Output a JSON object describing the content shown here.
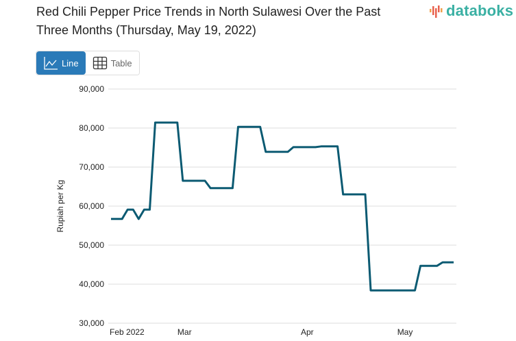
{
  "header": {
    "title": "Red Chili Pepper Price Trends in North Sulawesi Over the Past Three Months (Thursday, May 19, 2022)",
    "logo": "databoks"
  },
  "view_toggle": {
    "line_label": "Line",
    "table_label": "Table",
    "selected": "Line",
    "line_icon": "line-chart-icon",
    "table_icon": "table-grid-icon"
  },
  "colors": {
    "line": "#0b5a72",
    "accent": "#2a7ab8",
    "logo": "#3ab0a3",
    "logo_bars": "#e8604c"
  },
  "chart_data": {
    "type": "line",
    "title": "Red Chili Pepper Price Trends in North Sulawesi Over the Past Three Months (Thursday, May 19, 2022)",
    "ylabel": "Rupiah per Kg",
    "xlabel": "",
    "ylim": [
      30000,
      90000
    ],
    "yticks": [
      30000,
      40000,
      50000,
      60000,
      70000,
      80000,
      90000
    ],
    "ytick_labels": [
      "30,000",
      "40,000",
      "50,000",
      "60,000",
      "70,000",
      "80,000",
      "90,000"
    ],
    "xticks": [
      {
        "label": "Feb 2022",
        "at": 2.9
      },
      {
        "label": "Mar",
        "at": 13.3
      },
      {
        "label": "Apr",
        "at": 35.5
      },
      {
        "label": "May",
        "at": 53.2
      }
    ],
    "grid": true,
    "legend": "none",
    "values": [
      56700,
      56700,
      56700,
      59100,
      59100,
      56700,
      59100,
      59100,
      81400,
      81400,
      81400,
      81400,
      81400,
      66500,
      66500,
      66500,
      66500,
      66500,
      64600,
      64600,
      64600,
      64600,
      64600,
      80300,
      80300,
      80300,
      80300,
      80300,
      73900,
      73900,
      73900,
      73900,
      73900,
      75100,
      75100,
      75100,
      75100,
      75100,
      75300,
      75300,
      75300,
      75300,
      63000,
      63000,
      63000,
      63000,
      63000,
      38400,
      38400,
      38400,
      38400,
      38400,
      38400,
      38400,
      38400,
      38400,
      44700,
      44700,
      44700,
      44700,
      45600,
      45600,
      45600
    ]
  }
}
